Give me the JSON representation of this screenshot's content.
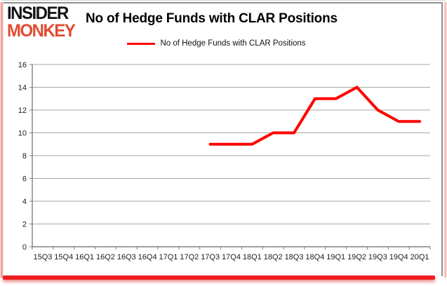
{
  "brand": {
    "line1": "INSIDER",
    "line2": "MONKEY",
    "monkey_color": "#e04b31"
  },
  "header": {
    "title": "No of Hedge Funds with CLAR Positions"
  },
  "legend": {
    "items": [
      {
        "label": "No of Hedge Funds with CLAR Positions",
        "color": "#ff0000"
      }
    ]
  },
  "chart_data": {
    "type": "line",
    "title": "No of Hedge Funds with CLAR Positions",
    "categories": [
      "15Q3",
      "15Q4",
      "16Q1",
      "16Q2",
      "16Q3",
      "16Q4",
      "17Q1",
      "17Q2",
      "17Q3",
      "17Q4",
      "18Q1",
      "18Q2",
      "18Q3",
      "18Q4",
      "19Q1",
      "19Q2",
      "19Q3",
      "19Q4",
      "20Q1"
    ],
    "series": [
      {
        "name": "No of Hedge Funds with CLAR Positions",
        "color": "#ff0000",
        "values": [
          null,
          null,
          null,
          null,
          null,
          null,
          null,
          null,
          9,
          9,
          9,
          10,
          10,
          13,
          13,
          14,
          12,
          11,
          11
        ]
      }
    ],
    "ylim": [
      0,
      16
    ],
    "ytick_step": 2,
    "yticks": [
      0,
      2,
      4,
      6,
      8,
      10,
      12,
      14,
      16
    ],
    "grid": true,
    "legend_position": "top",
    "axis_color": "#808080",
    "gridline_color": "#a6a6a6",
    "line_width": 4
  }
}
